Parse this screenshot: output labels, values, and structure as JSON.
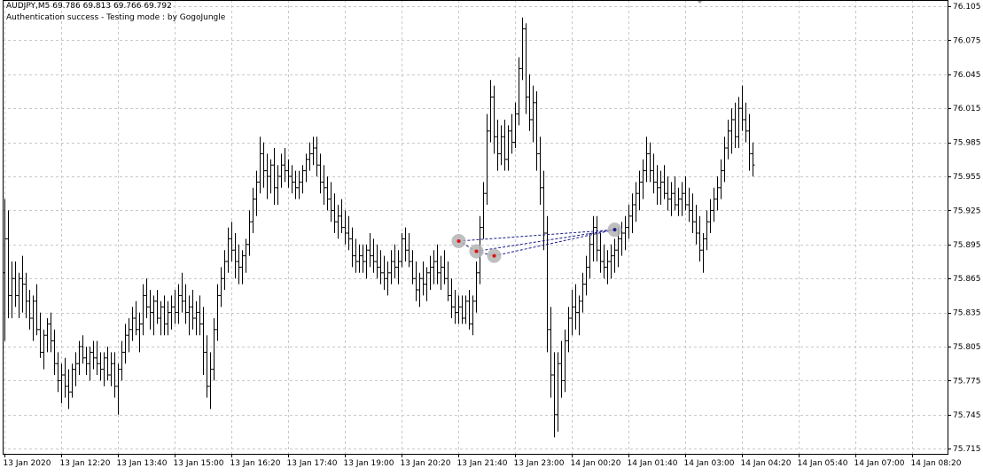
{
  "header": {
    "symbol_line": "AUDJPY,M5  69.786 69.813 69.766 69.792",
    "status_line": "Authentication success - Testing mode : by GogoJungle"
  },
  "colors": {
    "background": "#ffffff",
    "bars": "#000000",
    "grid": "#c8c8c8",
    "pattern_line": "#1a1a8c",
    "pattern_marker": "#b4b4b4",
    "pattern_point": "#e01010"
  },
  "chart_data": {
    "type": "ohlc",
    "symbol": "AUDJPY",
    "timeframe": "M5",
    "grid": true,
    "y_axis_side": "right",
    "y_ticks": [
      "76.105",
      "76.075",
      "76.045",
      "76.015",
      "75.985",
      "75.955",
      "75.925",
      "75.895",
      "75.865",
      "75.835",
      "75.805",
      "75.775",
      "75.745",
      "75.715"
    ],
    "ylim": [
      75.709,
      76.108
    ],
    "x_ticks": [
      "13 Jan 2020",
      "13 Jan 12:20",
      "13 Jan 13:40",
      "13 Jan 15:00",
      "13 Jan 16:20",
      "13 Jan 17:40",
      "13 Jan 19:00",
      "13 Jan 20:20",
      "13 Jan 21:40",
      "13 Jan 23:00",
      "14 Jan 00:20",
      "14 Jan 01:40",
      "14 Jan 03:00",
      "14 Jan 04:20",
      "14 Jan 05:40",
      "14 Jan 07:00",
      "14 Jan 08:20"
    ],
    "bars_per_tick": 16,
    "bars": [
      [
        75.87,
        75.935,
        75.81,
        75.9
      ],
      [
        75.9,
        75.925,
        75.83,
        75.85
      ],
      [
        75.85,
        75.88,
        75.83,
        75.865
      ],
      [
        75.865,
        75.88,
        75.84,
        75.85
      ],
      [
        75.85,
        75.87,
        75.83,
        75.865
      ],
      [
        75.865,
        75.885,
        75.835,
        75.86
      ],
      [
        75.86,
        75.87,
        75.83,
        75.845
      ],
      [
        75.845,
        75.855,
        75.82,
        75.83
      ],
      [
        75.83,
        75.85,
        75.81,
        75.845
      ],
      [
        75.845,
        75.86,
        75.815,
        75.82
      ],
      [
        75.82,
        75.835,
        75.795,
        75.8
      ],
      [
        75.8,
        75.82,
        75.785,
        75.815
      ],
      [
        75.815,
        75.83,
        75.8,
        75.825
      ],
      [
        75.825,
        75.835,
        75.8,
        75.81
      ],
      [
        75.81,
        75.82,
        75.78,
        75.79
      ],
      [
        75.79,
        75.8,
        75.765,
        75.775
      ],
      [
        75.775,
        75.79,
        75.755,
        75.78
      ],
      [
        75.78,
        75.795,
        75.76,
        75.77
      ],
      [
        75.77,
        75.785,
        75.75,
        75.765
      ],
      [
        75.765,
        75.79,
        75.76,
        75.785
      ],
      [
        75.785,
        75.8,
        75.77,
        75.79
      ],
      [
        75.79,
        75.81,
        75.78,
        75.805
      ],
      [
        75.805,
        75.815,
        75.79,
        75.795
      ],
      [
        75.795,
        75.805,
        75.78,
        75.79
      ],
      [
        75.79,
        75.805,
        75.775,
        75.8
      ],
      [
        75.8,
        75.81,
        75.785,
        75.795
      ],
      [
        75.795,
        75.81,
        75.78,
        75.79
      ],
      [
        75.79,
        75.8,
        75.775,
        75.785
      ],
      [
        75.785,
        75.8,
        75.77,
        75.795
      ],
      [
        75.795,
        75.805,
        75.775,
        75.78
      ],
      [
        75.78,
        75.8,
        75.77,
        75.79
      ],
      [
        75.79,
        75.8,
        75.76,
        75.77
      ],
      [
        75.77,
        75.79,
        75.745,
        75.785
      ],
      [
        75.785,
        75.81,
        75.775,
        75.8
      ],
      [
        75.8,
        75.825,
        75.79,
        75.815
      ],
      [
        75.815,
        75.83,
        75.8,
        75.82
      ],
      [
        75.82,
        75.84,
        75.81,
        75.83
      ],
      [
        75.83,
        75.845,
        75.815,
        75.82
      ],
      [
        75.82,
        75.835,
        75.8,
        75.825
      ],
      [
        75.825,
        75.86,
        75.815,
        75.85
      ],
      [
        75.85,
        75.865,
        75.83,
        75.84
      ],
      [
        75.84,
        75.855,
        75.82,
        75.835
      ],
      [
        75.835,
        75.85,
        75.815,
        75.845
      ],
      [
        75.845,
        75.855,
        75.825,
        75.83
      ],
      [
        75.83,
        75.845,
        75.815,
        75.84
      ],
      [
        75.84,
        75.85,
        75.815,
        75.825
      ],
      [
        75.825,
        75.845,
        75.815,
        75.835
      ],
      [
        75.835,
        75.85,
        75.82,
        75.84
      ],
      [
        75.84,
        75.855,
        75.825,
        75.835
      ],
      [
        75.835,
        75.86,
        75.825,
        75.85
      ],
      [
        75.85,
        75.87,
        75.835,
        75.845
      ],
      [
        75.845,
        75.86,
        75.825,
        75.835
      ],
      [
        75.835,
        75.85,
        75.815,
        75.84
      ],
      [
        75.84,
        75.855,
        75.82,
        75.83
      ],
      [
        75.83,
        75.845,
        75.815,
        75.835
      ],
      [
        75.835,
        75.85,
        75.815,
        75.825
      ],
      [
        75.825,
        75.84,
        75.78,
        75.8
      ],
      [
        75.8,
        75.815,
        75.76,
        75.77
      ],
      [
        75.77,
        75.8,
        75.75,
        75.785
      ],
      [
        75.785,
        75.83,
        75.775,
        75.82
      ],
      [
        75.82,
        75.86,
        75.81,
        75.85
      ],
      [
        75.85,
        75.875,
        75.84,
        75.865
      ],
      [
        75.865,
        75.89,
        75.855,
        75.88
      ],
      [
        75.88,
        75.91,
        75.87,
        75.9
      ],
      [
        75.9,
        75.915,
        75.88,
        75.89
      ],
      [
        75.89,
        75.905,
        75.865,
        75.88
      ],
      [
        75.88,
        75.895,
        75.86,
        75.875
      ],
      [
        75.875,
        75.89,
        75.86,
        75.885
      ],
      [
        75.885,
        75.9,
        75.87,
        75.895
      ],
      [
        75.895,
        75.925,
        75.885,
        75.915
      ],
      [
        75.915,
        75.945,
        75.905,
        75.935
      ],
      [
        75.935,
        75.96,
        75.92,
        75.95
      ],
      [
        75.95,
        75.99,
        75.94,
        75.975
      ],
      [
        75.975,
        75.985,
        75.945,
        75.96
      ],
      [
        75.96,
        75.975,
        75.935,
        75.955
      ],
      [
        75.955,
        75.97,
        75.94,
        75.965
      ],
      [
        75.965,
        75.98,
        75.93,
        75.945
      ],
      [
        75.945,
        75.965,
        75.93,
        75.955
      ],
      [
        75.955,
        75.975,
        75.945,
        75.965
      ],
      [
        75.965,
        75.98,
        75.95,
        75.96
      ],
      [
        75.96,
        75.97,
        75.945,
        75.955
      ],
      [
        75.955,
        75.965,
        75.94,
        75.95
      ],
      [
        75.95,
        75.96,
        75.935,
        75.945
      ],
      [
        75.945,
        75.96,
        75.935,
        75.95
      ],
      [
        75.95,
        75.965,
        75.94,
        75.96
      ],
      [
        75.96,
        75.975,
        75.95,
        75.97
      ],
      [
        75.97,
        75.985,
        75.96,
        75.975
      ],
      [
        75.975,
        75.99,
        75.965,
        75.98
      ],
      [
        75.98,
        75.99,
        75.955,
        75.965
      ],
      [
        75.965,
        75.975,
        75.94,
        75.95
      ],
      [
        75.95,
        75.965,
        75.93,
        75.945
      ],
      [
        75.945,
        75.955,
        75.925,
        75.935
      ],
      [
        75.935,
        75.95,
        75.915,
        75.925
      ],
      [
        75.925,
        75.94,
        75.905,
        75.915
      ],
      [
        75.915,
        75.93,
        75.9,
        75.92
      ],
      [
        75.92,
        75.935,
        75.905,
        75.91
      ],
      [
        75.91,
        75.925,
        75.895,
        75.905
      ],
      [
        75.905,
        75.92,
        75.89,
        75.9
      ],
      [
        75.9,
        75.91,
        75.875,
        75.885
      ],
      [
        75.885,
        75.9,
        75.87,
        75.88
      ],
      [
        75.88,
        75.895,
        75.87,
        75.885
      ],
      [
        75.885,
        75.895,
        75.87,
        75.88
      ],
      [
        75.88,
        75.895,
        75.865,
        75.89
      ],
      [
        75.89,
        75.905,
        75.875,
        75.885
      ],
      [
        75.885,
        75.9,
        75.87,
        75.88
      ],
      [
        75.88,
        75.895,
        75.865,
        75.875
      ],
      [
        75.875,
        75.89,
        75.86,
        75.87
      ],
      [
        75.87,
        75.885,
        75.855,
        75.865
      ],
      [
        75.865,
        75.88,
        75.85,
        75.87
      ],
      [
        75.87,
        75.89,
        75.86,
        75.88
      ],
      [
        75.88,
        75.895,
        75.865,
        75.875
      ],
      [
        75.875,
        75.89,
        75.86,
        75.88
      ],
      [
        75.88,
        75.905,
        75.875,
        75.9
      ],
      [
        75.9,
        75.91,
        75.88,
        75.89
      ],
      [
        75.89,
        75.905,
        75.875,
        75.88
      ],
      [
        75.88,
        75.89,
        75.86,
        75.865
      ],
      [
        75.865,
        75.88,
        75.845,
        75.855
      ],
      [
        75.855,
        75.87,
        75.84,
        75.865
      ],
      [
        75.865,
        75.88,
        75.85,
        75.86
      ],
      [
        75.86,
        75.875,
        75.845,
        75.87
      ],
      [
        75.87,
        75.885,
        75.855,
        75.875
      ],
      [
        75.875,
        75.89,
        75.86,
        75.88
      ],
      [
        75.88,
        75.895,
        75.86,
        75.87
      ],
      [
        75.87,
        75.885,
        75.855,
        75.875
      ],
      [
        75.875,
        75.89,
        75.86,
        75.865
      ],
      [
        75.865,
        75.88,
        75.845,
        75.85
      ],
      [
        75.85,
        75.865,
        75.83,
        75.84
      ],
      [
        75.84,
        75.855,
        75.825,
        75.835
      ],
      [
        75.835,
        75.85,
        75.825,
        75.84
      ],
      [
        75.84,
        75.85,
        75.825,
        75.83
      ],
      [
        75.83,
        75.85,
        75.825,
        75.845
      ],
      [
        75.845,
        75.855,
        75.82,
        75.825
      ],
      [
        75.825,
        75.85,
        75.815,
        75.845
      ],
      [
        75.845,
        75.88,
        75.835,
        75.87
      ],
      [
        75.87,
        75.92,
        75.86,
        75.91
      ],
      [
        75.91,
        75.95,
        75.9,
        75.94
      ],
      [
        75.94,
        76.01,
        75.93,
        75.995
      ],
      [
        75.995,
        76.04,
        75.985,
        76.025
      ],
      [
        76.025,
        76.035,
        75.975,
        75.99
      ],
      [
        75.99,
        76.005,
        75.96,
        75.975
      ],
      [
        75.975,
        76.0,
        75.965,
        75.99
      ],
      [
        75.99,
        76.005,
        75.96,
        75.97
      ],
      [
        75.97,
        76.0,
        75.96,
        75.995
      ],
      [
        75.995,
        76.01,
        75.975,
        75.985
      ],
      [
        75.985,
        76.02,
        75.98,
        76.01
      ],
      [
        76.01,
        76.06,
        76.0,
        76.05
      ],
      [
        76.05,
        76.095,
        76.04,
        76.085
      ],
      [
        76.085,
        76.09,
        76.01,
        76.025
      ],
      [
        76.025,
        76.045,
        75.995,
        76.005
      ],
      [
        76.005,
        76.035,
        75.985,
        76.02
      ],
      [
        76.02,
        76.03,
        75.96,
        75.975
      ],
      [
        75.975,
        75.99,
        75.93,
        75.945
      ],
      [
        75.945,
        75.96,
        75.89,
        75.905
      ],
      [
        75.905,
        75.92,
        75.8,
        75.82
      ],
      [
        75.82,
        75.84,
        75.76,
        75.78
      ],
      [
        75.78,
        75.8,
        75.725,
        75.745
      ],
      [
        75.745,
        75.8,
        75.73,
        75.79
      ],
      [
        75.79,
        75.81,
        75.76,
        75.775
      ],
      [
        75.775,
        75.82,
        75.765,
        75.81
      ],
      [
        75.81,
        75.84,
        75.8,
        75.83
      ],
      [
        75.83,
        75.855,
        75.815,
        75.84
      ],
      [
        75.84,
        75.86,
        75.82,
        75.835
      ],
      [
        75.835,
        75.85,
        75.815,
        75.845
      ],
      [
        75.845,
        75.87,
        75.835,
        75.86
      ],
      [
        75.86,
        75.885,
        75.85,
        75.875
      ],
      [
        75.875,
        75.905,
        75.865,
        75.895
      ],
      [
        75.895,
        75.92,
        75.88,
        75.91
      ],
      [
        75.91,
        75.92,
        75.88,
        75.89
      ],
      [
        75.89,
        75.905,
        75.87,
        75.88
      ],
      [
        75.88,
        75.895,
        75.865,
        75.875
      ],
      [
        75.875,
        75.89,
        75.86,
        75.88
      ],
      [
        75.88,
        75.895,
        75.865,
        75.885
      ],
      [
        75.885,
        75.9,
        75.87,
        75.89
      ],
      [
        75.89,
        75.91,
        75.875,
        75.9
      ],
      [
        75.9,
        75.915,
        75.885,
        75.905
      ],
      [
        75.905,
        75.92,
        75.89,
        75.91
      ],
      [
        75.91,
        75.93,
        75.9,
        75.92
      ],
      [
        75.92,
        75.94,
        75.905,
        75.93
      ],
      [
        75.93,
        75.95,
        75.915,
        75.94
      ],
      [
        75.94,
        75.96,
        75.925,
        75.95
      ],
      [
        75.95,
        75.97,
        75.935,
        75.96
      ],
      [
        75.96,
        75.99,
        75.95,
        75.975
      ],
      [
        75.975,
        75.985,
        75.95,
        75.96
      ],
      [
        75.96,
        75.975,
        75.94,
        75.95
      ],
      [
        75.95,
        75.965,
        75.93,
        75.945
      ],
      [
        75.945,
        75.96,
        75.93,
        75.95
      ],
      [
        75.95,
        75.965,
        75.935,
        75.94
      ],
      [
        75.94,
        75.955,
        75.925,
        75.935
      ],
      [
        75.935,
        75.95,
        75.92,
        75.94
      ],
      [
        75.94,
        75.955,
        75.925,
        75.93
      ],
      [
        75.93,
        75.945,
        75.92,
        75.935
      ],
      [
        75.935,
        75.95,
        75.92,
        75.94
      ],
      [
        75.94,
        75.955,
        75.925,
        75.93
      ],
      [
        75.93,
        75.945,
        75.915,
        75.925
      ],
      [
        75.925,
        75.94,
        75.905,
        75.915
      ],
      [
        75.915,
        75.93,
        75.895,
        75.905
      ],
      [
        75.905,
        75.92,
        75.88,
        75.89
      ],
      [
        75.89,
        75.905,
        75.87,
        75.9
      ],
      [
        75.9,
        75.925,
        75.89,
        75.915
      ],
      [
        75.915,
        75.935,
        75.905,
        75.925
      ],
      [
        75.925,
        75.945,
        75.915,
        75.935
      ],
      [
        75.935,
        75.955,
        75.925,
        75.945
      ],
      [
        75.945,
        75.97,
        75.935,
        75.96
      ],
      [
        75.96,
        75.99,
        75.95,
        75.98
      ],
      [
        75.98,
        76.005,
        75.97,
        75.995
      ],
      [
        75.995,
        76.015,
        75.975,
        76.005
      ],
      [
        76.005,
        76.02,
        75.98,
        75.99
      ],
      [
        75.99,
        76.025,
        75.98,
        76.015
      ],
      [
        76.015,
        76.035,
        75.995,
        76.005
      ],
      [
        76.005,
        76.02,
        75.985,
        75.995
      ],
      [
        75.995,
        76.01,
        75.96,
        75.975
      ],
      [
        75.975,
        75.985,
        75.955,
        75.965
      ]
    ]
  },
  "pattern": {
    "points": [
      {
        "bar": 128,
        "price": 75.898
      },
      {
        "bar": 133,
        "price": 75.889
      },
      {
        "bar": 138,
        "price": 75.885
      },
      {
        "bar": 172,
        "price": 75.908
      }
    ]
  },
  "top_marker_bar": 196
}
